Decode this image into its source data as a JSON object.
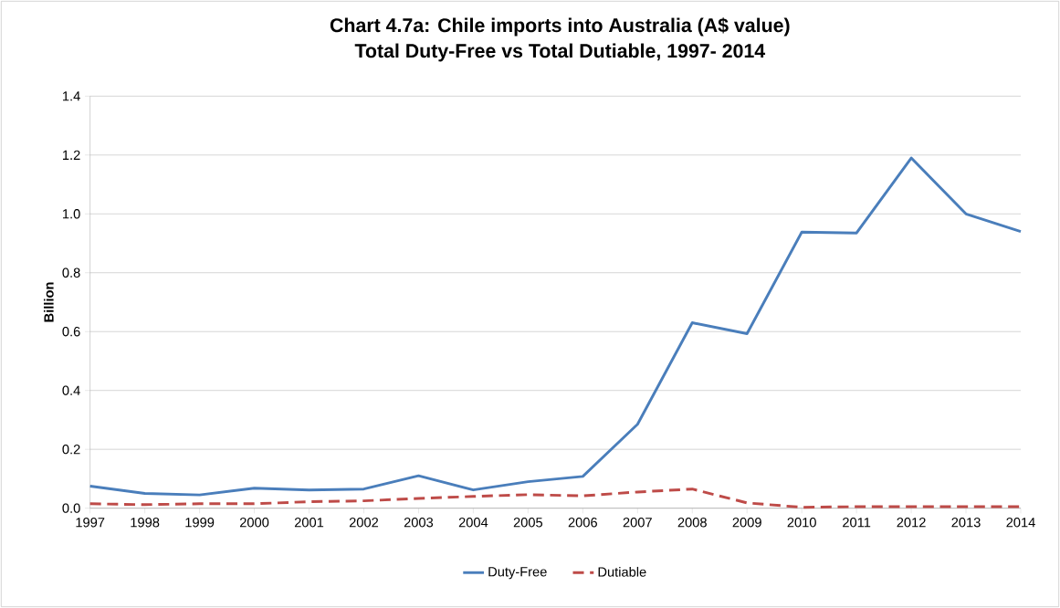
{
  "chart_data": {
    "type": "line",
    "title": "Chart 4.7a: Chile imports into Australia (A$ value)",
    "subtitle": "Total Duty-Free vs Total Dutiable, 1997- 2014",
    "ylabel": "Billion",
    "categories": [
      "1997",
      "1998",
      "1999",
      "2000",
      "2001",
      "2002",
      "2003",
      "2004",
      "2005",
      "2006",
      "2007",
      "2008",
      "2009",
      "2010",
      "2011",
      "2012",
      "2013",
      "2014"
    ],
    "series": [
      {
        "name": "Duty-Free",
        "color": "#4a7ebb",
        "line_style": "solid",
        "values": [
          0.075,
          0.05,
          0.045,
          0.068,
          0.062,
          0.065,
          0.11,
          0.062,
          0.09,
          0.108,
          0.285,
          0.63,
          0.593,
          0.938,
          0.935,
          1.19,
          1.0,
          0.94
        ]
      },
      {
        "name": "Dutiable",
        "color": "#be4b48",
        "line_style": "dashed",
        "values": [
          0.015,
          0.012,
          0.015,
          0.015,
          0.022,
          0.025,
          0.033,
          0.04,
          0.046,
          0.042,
          0.055,
          0.065,
          0.018,
          0.003,
          0.005,
          0.005,
          0.005,
          0.005
        ]
      }
    ],
    "ylim": [
      0,
      1.4
    ],
    "yticks": [
      {
        "value": 0,
        "label": "0.0"
      },
      0.2,
      0.4,
      0.6,
      0.8,
      {
        "value": 1,
        "label": "1.0"
      },
      1.2,
      1.4
    ],
    "grid": "y",
    "legend": "bottom",
    "marker": "none"
  }
}
